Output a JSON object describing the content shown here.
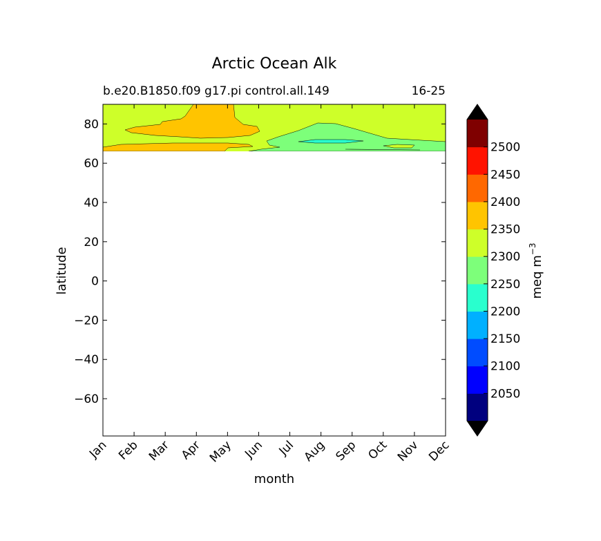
{
  "chart_data": {
    "type": "heatmap",
    "subtype": "filled-contour",
    "title": "Arctic Ocean Alk",
    "subtitle_left": "b.e20.B1850.f09 g17.pi control.all.149",
    "subtitle_right": "16-25",
    "xlabel": "month",
    "ylabel": "latitude",
    "x_ticks": [
      "Jan",
      "Feb",
      "Mar",
      "Apr",
      "May",
      "Jun",
      "Jul",
      "Aug",
      "Sep",
      "Oct",
      "Nov",
      "Dec"
    ],
    "xlim": [
      1,
      12
    ],
    "ylim": [
      -79,
      90
    ],
    "y_ticks": [
      -60,
      -40,
      -20,
      0,
      20,
      40,
      60,
      80
    ],
    "y_tick_labels": [
      "−60",
      "−40",
      "−20",
      "0",
      "20",
      "40",
      "60",
      "80"
    ],
    "data_extent_lat": [
      66,
      90
    ],
    "colorbar": {
      "label": "meq m",
      "label_exponent": "−3",
      "levels": [
        2000,
        2050,
        2100,
        2150,
        2200,
        2250,
        2300,
        2350,
        2400,
        2450,
        2500,
        2550
      ],
      "tick_labels": [
        "2050",
        "2100",
        "2150",
        "2200",
        "2250",
        "2300",
        "2350",
        "2400",
        "2450",
        "2500"
      ],
      "colors": [
        "#00007f",
        "#0000ff",
        "#004cff",
        "#00b0ff",
        "#29ffce",
        "#7dff7a",
        "#ceff29",
        "#ffc400",
        "#ff6800",
        "#ff1300",
        "#7f0000"
      ],
      "extend": "both",
      "extend_color": "#000000"
    },
    "regions": [
      {
        "level_range": [
          2300,
          2350
        ],
        "color": "#ceff29",
        "description": "background field 66N-90N"
      },
      {
        "level_range": [
          2350,
          2400
        ],
        "color": "#ffc400",
        "months": [
          1,
          6.1
        ],
        "lat": [
          66,
          90
        ]
      },
      {
        "level_range": [
          2250,
          2300
        ],
        "color": "#7dff7a",
        "months": [
          5.7,
          12
        ],
        "lat": [
          66,
          81
        ]
      },
      {
        "level_range": [
          2200,
          2250
        ],
        "color": "#29ffce",
        "months": [
          7.2,
          9.4
        ],
        "lat": [
          71,
          73
        ]
      }
    ]
  }
}
